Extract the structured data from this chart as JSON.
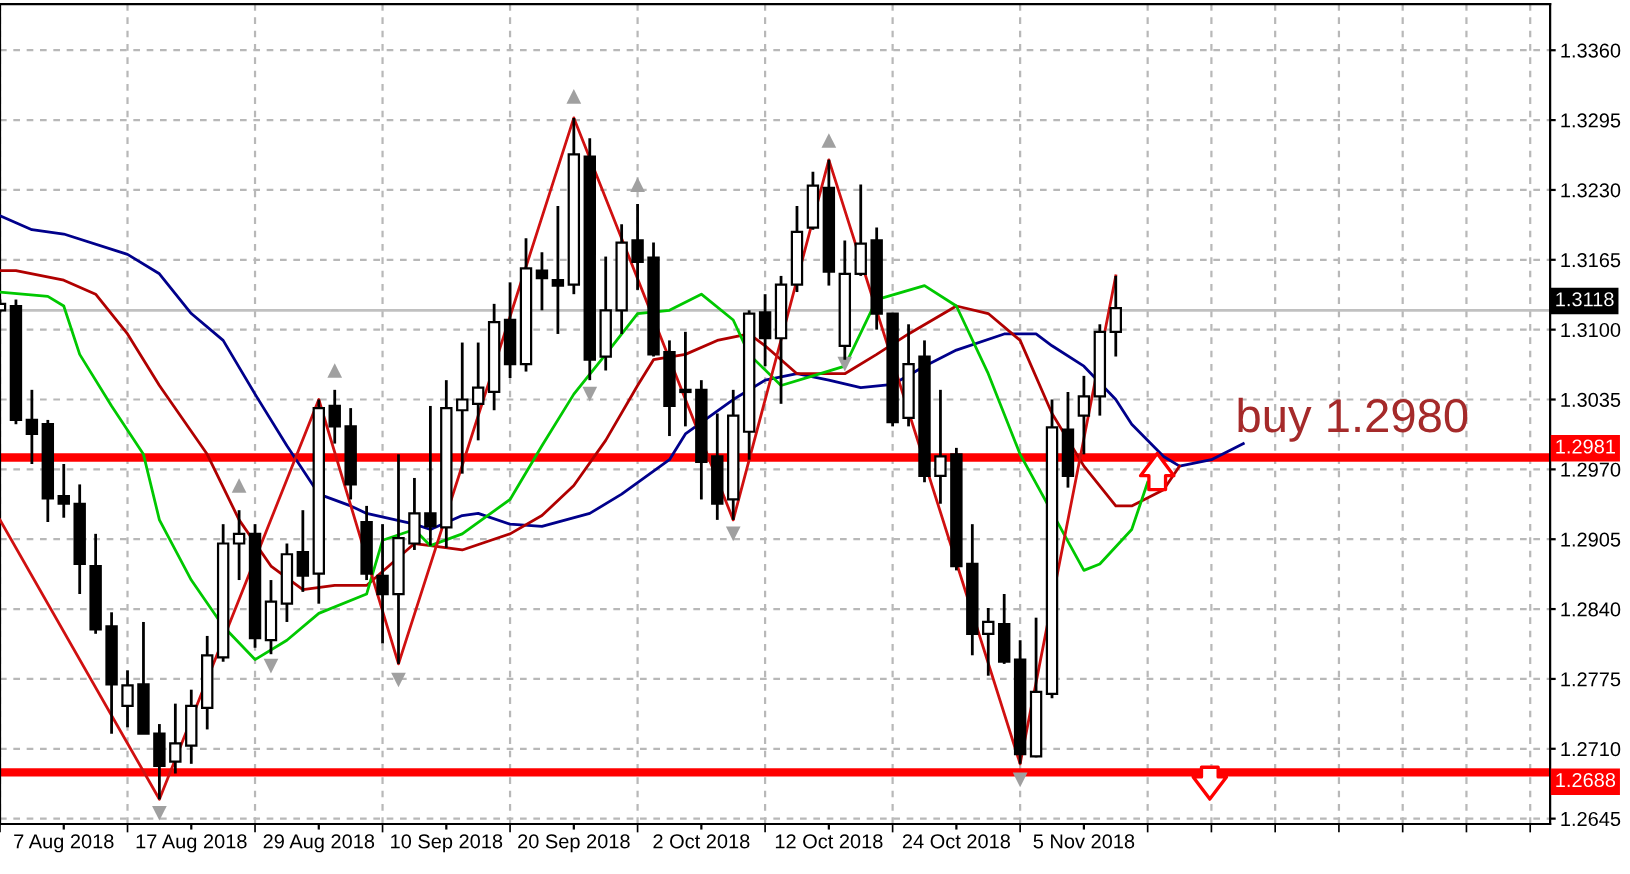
{
  "chart_data": {
    "type": "candlestick",
    "categories": [
      null,
      null,
      null,
      null,
      "7 Aug 2018",
      null,
      null,
      null,
      null,
      null,
      null,
      null,
      "17 Aug 2018",
      null,
      null,
      null,
      null,
      null,
      null,
      null,
      "29 Aug 2018",
      null,
      null,
      null,
      null,
      null,
      null,
      null,
      "10 Sep 2018",
      null,
      null,
      null,
      null,
      null,
      null,
      null,
      "20 Sep 2018",
      null,
      null,
      null,
      null,
      null,
      null,
      null,
      "2 Oct 2018",
      null,
      null,
      null,
      null,
      null,
      null,
      null,
      "12 Oct 2018",
      null,
      null,
      null,
      null,
      null,
      null,
      null,
      "24 Oct 2018",
      null,
      null,
      null,
      null,
      null,
      null,
      null,
      "5 Nov 2018",
      null,
      null,
      null,
      null,
      null,
      null,
      null,
      null,
      null,
      null
    ],
    "ohlc": [
      [
        1.3118,
        1.3128,
        1.3116,
        1.3124
      ],
      [
        1.3122,
        1.3128,
        1.3012,
        1.3016
      ],
      [
        1.3016,
        1.3044,
        1.2975,
        1.3003
      ],
      [
        1.3012,
        1.3016,
        1.2921,
        1.2943
      ],
      [
        1.2945,
        1.2975,
        1.2925,
        1.2938
      ],
      [
        1.2938,
        1.2956,
        1.2854,
        1.2882
      ],
      [
        1.288,
        1.291,
        1.2817,
        1.2821
      ],
      [
        1.2824,
        1.2837,
        1.2724,
        1.277
      ],
      [
        1.275,
        1.2783,
        1.273,
        1.2769
      ],
      [
        1.277,
        1.2828,
        1.2724,
        1.2724
      ],
      [
        1.2724,
        1.2733,
        1.2663,
        1.2694
      ],
      [
        1.2698,
        1.2752,
        1.2687,
        1.2715
      ],
      [
        1.2713,
        1.2765,
        1.2696,
        1.275
      ],
      [
        1.2748,
        1.2815,
        1.2728,
        1.2797
      ],
      [
        1.2795,
        1.2919,
        1.2791,
        1.2901
      ],
      [
        1.2901,
        1.2932,
        1.2867,
        1.291
      ],
      [
        1.291,
        1.2919,
        1.2804,
        1.2813
      ],
      [
        1.2811,
        1.2867,
        1.2798,
        1.2847
      ],
      [
        1.2845,
        1.2901,
        1.2828,
        1.2891
      ],
      [
        1.2893,
        1.2932,
        1.2856,
        1.2871
      ],
      [
        1.2873,
        1.3035,
        1.2845,
        1.3027
      ],
      [
        1.3029,
        1.3044,
        1.2994,
        1.301
      ],
      [
        1.301,
        1.3027,
        1.2942,
        1.2956
      ],
      [
        1.2921,
        1.2936,
        1.2867,
        1.2873
      ],
      [
        1.2871,
        1.2919,
        1.2808,
        1.2854
      ],
      [
        1.2854,
        1.2984,
        1.2789,
        1.2906
      ],
      [
        1.2901,
        1.2962,
        1.2895,
        1.2929
      ],
      [
        1.2929,
        1.3029,
        1.2899,
        1.2917
      ],
      [
        1.2916,
        1.3053,
        1.2897,
        1.3027
      ],
      [
        1.3025,
        1.3088,
        1.2966,
        1.3035
      ],
      [
        1.3031,
        1.3088,
        1.2997,
        1.3046
      ],
      [
        1.3042,
        1.3124,
        1.3025,
        1.3107
      ],
      [
        1.3109,
        1.3144,
        1.3055,
        1.3068
      ],
      [
        1.3068,
        1.3185,
        1.3061,
        1.3157
      ],
      [
        1.3155,
        1.3172,
        1.3118,
        1.3148
      ],
      [
        1.3146,
        1.3215,
        1.3096,
        1.3141
      ],
      [
        1.3142,
        1.3297,
        1.3133,
        1.3263
      ],
      [
        1.3261,
        1.3278,
        1.3053,
        1.3072
      ],
      [
        1.3075,
        1.3168,
        1.3062,
        1.3118
      ],
      [
        1.3118,
        1.3198,
        1.3096,
        1.3181
      ],
      [
        1.3183,
        1.3217,
        1.3137,
        1.3163
      ],
      [
        1.3167,
        1.3181,
        1.3075,
        1.3077
      ],
      [
        1.3079,
        1.309,
        1.3001,
        1.3029
      ],
      [
        1.3044,
        1.3098,
        1.301,
        1.3042
      ],
      [
        1.3044,
        1.3053,
        1.2942,
        1.2977
      ],
      [
        1.2982,
        1.3022,
        1.2923,
        1.2938
      ],
      [
        1.2942,
        1.3044,
        1.2923,
        1.302
      ],
      [
        1.3005,
        1.3118,
        1.2979,
        1.3115
      ],
      [
        1.3116,
        1.3133,
        1.3066,
        1.3092
      ],
      [
        1.3092,
        1.315,
        1.3031,
        1.3142
      ],
      [
        1.3142,
        1.3215,
        1.3135,
        1.3191
      ],
      [
        1.3195,
        1.3247,
        1.3193,
        1.3234
      ],
      [
        1.3232,
        1.3258,
        1.3141,
        1.3154
      ],
      [
        1.3085,
        1.3183,
        1.3072,
        1.3152
      ],
      [
        1.3152,
        1.3235,
        1.315,
        1.318
      ],
      [
        1.3183,
        1.3195,
        1.31,
        1.3115
      ],
      [
        1.3115,
        1.3115,
        1.301,
        1.3014
      ],
      [
        1.3018,
        1.3105,
        1.301,
        1.3068
      ],
      [
        1.3075,
        1.309,
        1.2958,
        1.2964
      ],
      [
        1.2964,
        1.3044,
        1.2938,
        1.2982
      ],
      [
        1.2984,
        1.299,
        1.2876,
        1.288
      ],
      [
        1.2882,
        1.2919,
        1.2797,
        1.2817
      ],
      [
        1.2817,
        1.2841,
        1.2778,
        1.2828
      ],
      [
        1.2826,
        1.2854,
        1.2789,
        1.2791
      ],
      [
        1.2793,
        1.2811,
        1.2696,
        1.2705
      ],
      [
        1.2703,
        1.2832,
        1.2702,
        1.2763
      ],
      [
        1.2761,
        1.3035,
        1.2757,
        1.3009
      ],
      [
        1.3007,
        1.3042,
        1.2953,
        1.2964
      ],
      [
        1.302,
        1.3057,
        1.2984,
        1.3038
      ],
      [
        1.3038,
        1.3105,
        1.302,
        1.3098
      ],
      [
        1.3098,
        1.315,
        1.3075,
        1.312
      ],
      null,
      null,
      null,
      null,
      null,
      null,
      null,
      null
    ],
    "series": [
      {
        "type": "line",
        "color": "#00008b",
        "values": [
          1.3206,
          null,
          1.3193,
          null,
          1.3189,
          null,
          null,
          null,
          1.317,
          null,
          1.3152,
          null,
          1.3115,
          null,
          1.309,
          null,
          1.304,
          null,
          1.2992,
          null,
          1.2947,
          null,
          1.2936,
          1.2929,
          null,
          null,
          1.2919,
          1.2914,
          null,
          1.2927,
          1.2929,
          null,
          1.2919,
          null,
          1.2917,
          null,
          null,
          1.2929,
          null,
          1.2947,
          null,
          null,
          1.2979,
          1.3003,
          null,
          null,
          1.3035,
          null,
          1.3053,
          null,
          1.3059,
          null,
          1.3053,
          null,
          1.3046,
          null,
          1.3049,
          null,
          1.3066,
          null,
          1.3081,
          null,
          null,
          1.3096,
          null,
          1.3096,
          1.3085,
          null,
          1.3066,
          null,
          1.3035,
          1.3012,
          null,
          1.2982,
          1.2973,
          null,
          1.2979,
          null,
          1.2994
        ]
      },
      {
        "type": "line",
        "color": "#b00000",
        "values": [
          1.3155,
          1.3155,
          null,
          null,
          1.3146,
          null,
          1.3133,
          null,
          1.3096,
          null,
          1.3048,
          null,
          null,
          1.2984,
          null,
          1.2923,
          null,
          1.288,
          null,
          1.2858,
          null,
          1.2862,
          null,
          1.2862,
          null,
          null,
          1.2901,
          1.2899,
          null,
          1.2895,
          null,
          null,
          1.291,
          null,
          1.2927,
          null,
          1.2955,
          null,
          1.2997,
          null,
          1.3048,
          1.3072,
          null,
          1.3077,
          null,
          1.309,
          null,
          1.3096,
          1.3085,
          null,
          1.3059,
          null,
          null,
          1.3059,
          null,
          1.3077,
          null,
          1.3096,
          null,
          null,
          1.3122,
          null,
          1.3115,
          null,
          1.309,
          null,
          1.3022,
          null,
          1.2973,
          null,
          1.2936,
          1.2936,
          null,
          1.2951,
          1.2973,
          null,
          null,
          null,
          null
        ]
      },
      {
        "type": "line",
        "color": "#00c800",
        "values": [
          1.3135,
          null,
          null,
          1.3131,
          1.3122,
          1.3077,
          null,
          1.3029,
          null,
          1.2984,
          1.2923,
          null,
          1.2867,
          null,
          1.2824,
          null,
          1.2793,
          null,
          1.2811,
          null,
          1.2836,
          null,
          null,
          1.2854,
          1.2904,
          null,
          1.2914,
          1.2899,
          null,
          1.291,
          null,
          null,
          1.2942,
          null,
          1.2992,
          null,
          1.304,
          null,
          1.3077,
          null,
          1.3115,
          null,
          1.3118,
          null,
          1.3133,
          null,
          1.3109,
          1.3077,
          null,
          1.3048,
          null,
          1.3057,
          null,
          1.3066,
          null,
          1.3128,
          null,
          null,
          1.3141,
          null,
          1.3122,
          null,
          1.3059,
          null,
          1.2984,
          null,
          null,
          null,
          1.2876,
          1.2882,
          null,
          1.2914,
          1.2958,
          null,
          null,
          null,
          null,
          null,
          null
        ]
      },
      {
        "type": "line",
        "color": "#d01010",
        "values": [
          1.2923,
          null,
          null,
          null,
          null,
          null,
          null,
          null,
          null,
          null,
          1.2663,
          null,
          null,
          null,
          null,
          null,
          null,
          null,
          null,
          null,
          1.3035,
          null,
          null,
          null,
          null,
          1.2789,
          null,
          null,
          null,
          null,
          null,
          null,
          null,
          null,
          null,
          null,
          1.3297,
          null,
          null,
          null,
          null,
          null,
          null,
          null,
          null,
          null,
          1.2923,
          null,
          null,
          null,
          null,
          null,
          1.3258,
          null,
          null,
          null,
          null,
          null,
          null,
          null,
          null,
          null,
          null,
          null,
          1.2696,
          null,
          null,
          null,
          null,
          null,
          1.315,
          null,
          null,
          null,
          null,
          null,
          null,
          null,
          null
        ]
      },
      {
        "type": "scatter",
        "color": "#a0a0a0",
        "marker": "triangle",
        "values": [
          null,
          null,
          null,
          null,
          null,
          null,
          null,
          null,
          null,
          null,
          null,
          null,
          null,
          null,
          null,
          1.2955,
          null,
          null,
          null,
          null,
          null,
          1.3062,
          null,
          null,
          null,
          null,
          null,
          null,
          null,
          null,
          null,
          null,
          null,
          null,
          null,
          null,
          1.3317,
          null,
          null,
          null,
          1.3235,
          null,
          null,
          null,
          null,
          null,
          null,
          null,
          null,
          null,
          null,
          null,
          1.3276,
          null,
          null,
          null,
          null,
          null,
          null,
          null,
          null,
          null,
          null,
          null,
          null,
          null,
          null,
          null,
          null,
          null,
          null,
          null,
          null,
          null,
          null,
          null,
          null,
          null,
          null
        ]
      },
      {
        "type": "scatter",
        "color": "#a0a0a0",
        "marker": "triangle_down",
        "values": [
          null,
          null,
          null,
          null,
          null,
          null,
          null,
          null,
          null,
          null,
          1.265,
          null,
          null,
          null,
          null,
          null,
          null,
          1.2787,
          null,
          null,
          null,
          null,
          null,
          null,
          null,
          1.2774,
          null,
          null,
          null,
          null,
          null,
          null,
          null,
          null,
          null,
          null,
          null,
          1.304,
          null,
          null,
          null,
          null,
          null,
          null,
          null,
          null,
          1.291,
          null,
          null,
          null,
          null,
          null,
          null,
          1.3068,
          null,
          null,
          null,
          null,
          null,
          null,
          null,
          null,
          null,
          null,
          1.2681,
          null,
          null,
          null,
          null,
          null,
          null,
          null,
          null,
          null,
          null,
          null,
          null,
          null,
          null
        ]
      }
    ],
    "ylim": [
      1.264,
      1.3403
    ],
    "yticks": [
      {
        "value": 1.2645,
        "label": "1.2645"
      },
      {
        "value": 1.271,
        "label": "1.2710"
      },
      {
        "value": 1.2775,
        "label": "1.2775"
      },
      {
        "value": 1.284,
        "label": "1.2840"
      },
      {
        "value": 1.2905,
        "label": "1.2905"
      },
      {
        "value": 1.297,
        "label": "1.2970"
      },
      {
        "value": 1.3035,
        "label": "1.3035"
      },
      {
        "value": 1.31,
        "label": "1.3100"
      },
      {
        "value": 1.3165,
        "label": "1.3165"
      },
      {
        "value": 1.323,
        "label": "1.3230"
      },
      {
        "value": 1.3295,
        "label": "1.3295"
      },
      {
        "value": 1.336,
        "label": "1.3360"
      }
    ],
    "ref_lines": [
      {
        "axis": "y",
        "value": 1.3118,
        "label": "1.3118",
        "color": "#c0c0c0"
      },
      {
        "axis": "y",
        "value": 1.2981,
        "label": "1.2981",
        "color": "#ff0000"
      },
      {
        "axis": "y",
        "value": 1.2688,
        "label": "1.2688",
        "color": "#ff0000"
      }
    ],
    "annotations": [
      "buy 1.2980"
    ],
    "grid": true
  }
}
